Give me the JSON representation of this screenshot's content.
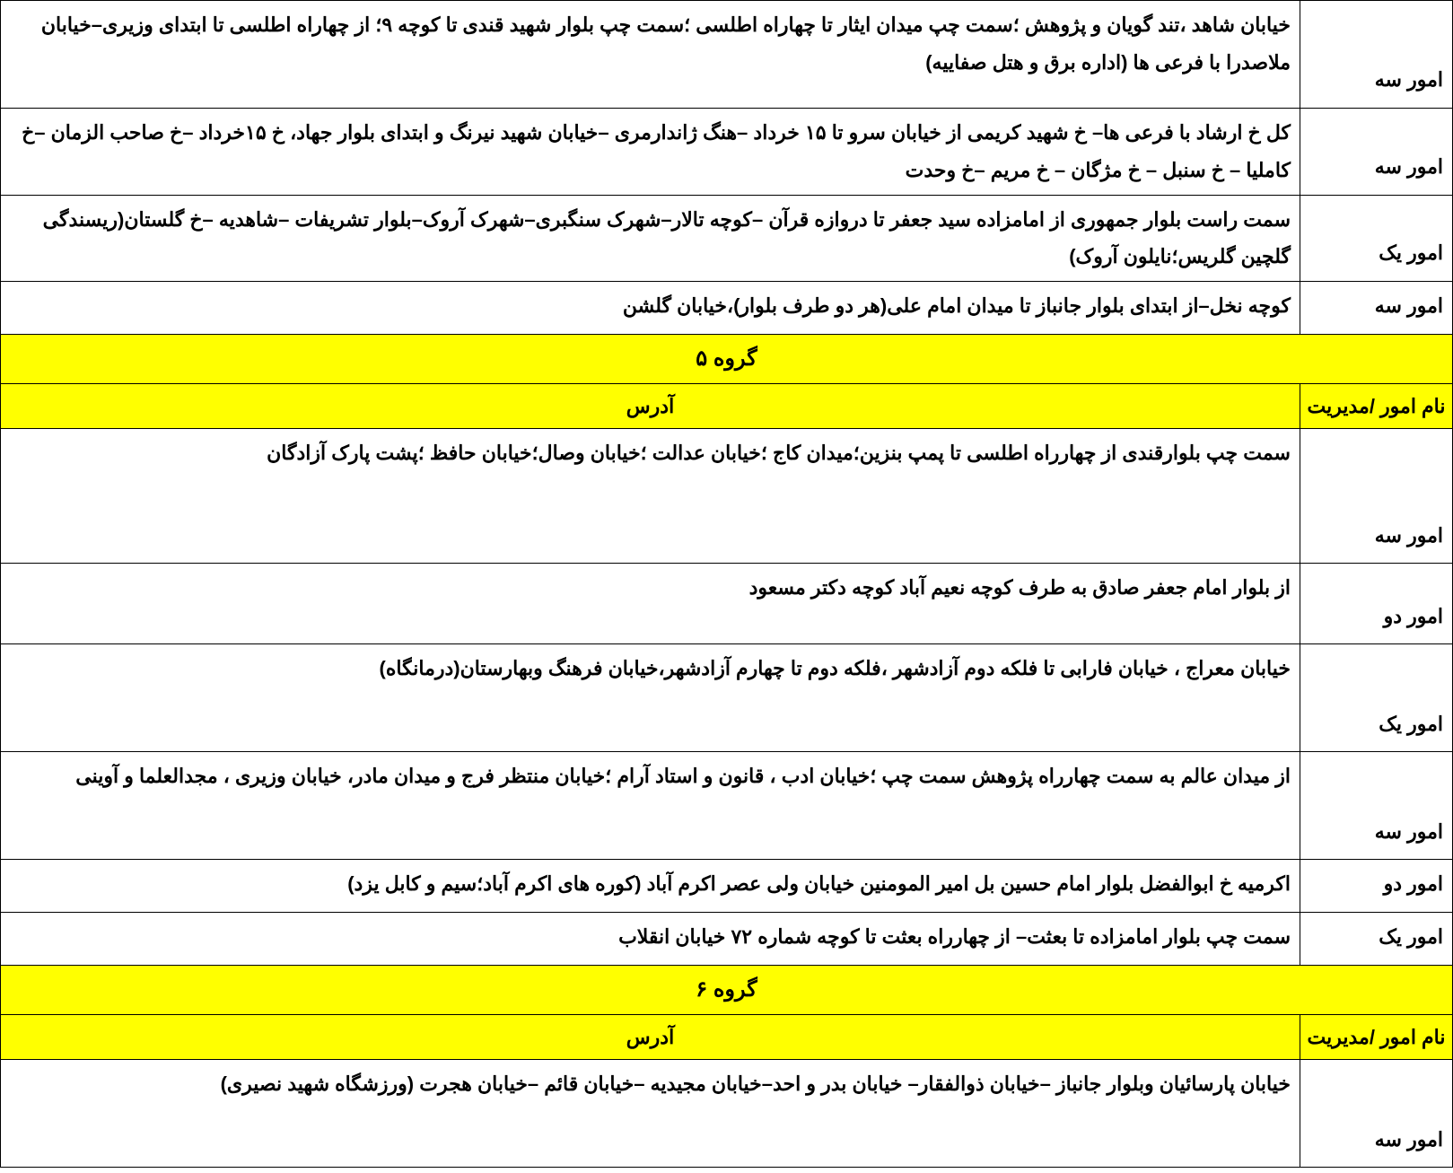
{
  "columns": {
    "mgmt_header": "نام امور /مدیریت",
    "addr_header": "آدرس"
  },
  "groups": {
    "g5": "گروه ۵",
    "g6": "گروه ۶"
  },
  "top_rows": [
    {
      "mgmt": "امور سه",
      "addr": "خیابان شاهد ،تند گویان و پژوهش ؛سمت چپ میدان ایثار تا چهاراه اطلسی ؛سمت چپ بلوار شهید قندی تا کوچه ۹؛ از چهاراه اطلسی تا ابتدای وزیری–خیابان ملاصدرا با فرعی ها (اداره برق و هتل صفاییه)",
      "row_class": "tall"
    },
    {
      "mgmt": "امور سه",
      "addr": "کل خ ارشاد با فرعی ها– خ شهید کریمی از خیابان سرو تا ۱۵ خرداد  –هنگ ژاندارمری –خیابان شهید نیرنگ و ابتدای بلوار جهاد، خ ۱۵خرداد –خ صاحب الزمان –خ کاملیا – خ سنبل – خ مژگان – خ مریم  –خ وحدت",
      "row_class": "med"
    },
    {
      "mgmt": "امور یک",
      "addr": "سمت راست بلوار جمهوری از امامزاده سید جعفر تا دروازه قرآن –کوچه تالار–شهرک سنگبری–شهرک آروک–بلوار تشریفات –شاهدیه –خ گلستان(ریسندگی گلچین گلریس؛نایلون آروک)",
      "row_class": "med"
    },
    {
      "mgmt": "امور سه",
      "addr": "کوچه نخل–از ابتدای بلوار جانباز تا میدان امام علی(هر دو طرف بلوار)،خیابان گلشن",
      "row_class": "short"
    }
  ],
  "g5_rows": [
    {
      "mgmt": "امور سه",
      "addr": "سمت چپ بلوارقندی از چهارراه اطلسی تا پمپ بنزین؛میدان کاج ؛خیابان عدالت ؛خیابان وصال؛خیابان حافظ ؛پشت پارک آزادگان",
      "row_class": "taller"
    },
    {
      "mgmt": "امور دو",
      "addr": "از بلوار امام جعفر صادق به طرف کوچه نعیم آباد کوچه دکتر مسعود",
      "row_class": "med"
    },
    {
      "mgmt": "امور یک",
      "addr": "خیابان معراج ، خیابان فارابی تا فلکه دوم آزادشهر ،فلکه دوم تا چهارم آزادشهر،خیابان فرهنگ وبهارستان(درمانگاه)",
      "row_class": "tall"
    },
    {
      "mgmt": "امور سه",
      "addr": "از میدان عالم به سمت چهارراه پژوهش سمت چپ ؛خیابان ادب ، قانون و استاد آرام ؛خیابان منتظر فرج و میدان مادر، خیابان وزیری ، مجدالعلما و آوینی",
      "row_class": "tall"
    },
    {
      "mgmt": "امور دو",
      "addr": "اکرمیه خ ابوالفضل بلوار امام حسین بل امیر المومنین خیابان ولی عصر اکرم آباد (کوره های اکرم آباد؛سیم و کابل یزد)",
      "row_class": "short"
    },
    {
      "mgmt": "امور یک",
      "addr": "سمت چپ بلوار امامزاده تا بعثت– از چهارراه بعثت تا کوچه شماره ۷۲ خیابان انقلاب",
      "row_class": "short"
    }
  ],
  "g6_rows": [
    {
      "mgmt": "امور سه",
      "addr": "خیابان پارسائیان وبلوار جانباز –خیابان ذوالفقار– خیابان بدر و احد–خیابان مجیدیه –خیابان قائم –خیابان هجرت (ورزشگاه شهید نصیری)",
      "row_class": "tall"
    }
  ]
}
